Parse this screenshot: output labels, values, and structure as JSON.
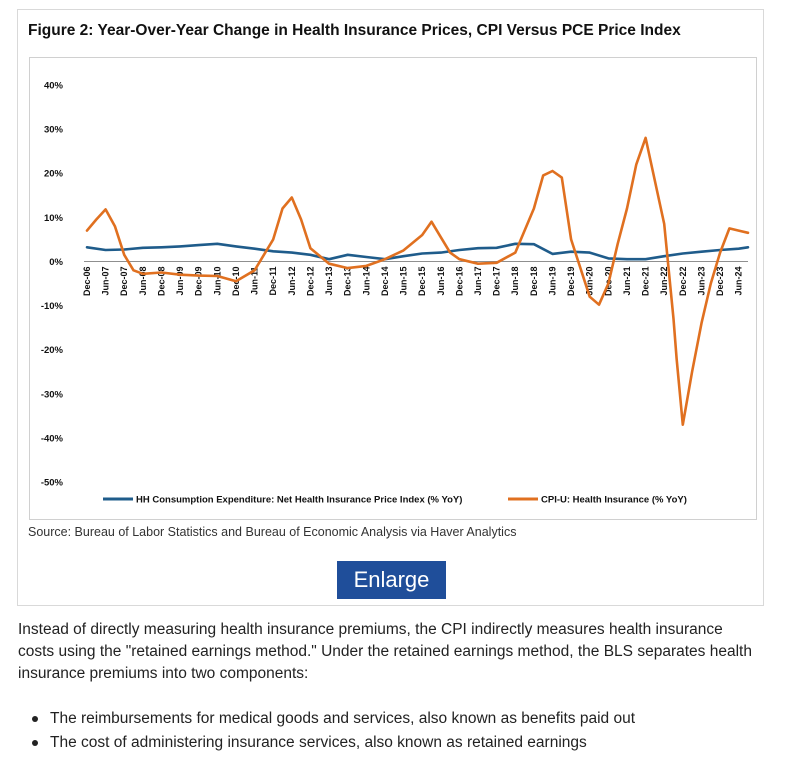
{
  "figure": {
    "title": "Figure 2: Year-Over-Year Change in Health Insurance Prices, CPI Versus PCE Price Index",
    "source": "Source: Bureau of Labor Statistics and Bureau of Economic Analysis via Haver Analytics",
    "enlarge_label": "Enlarge"
  },
  "body": {
    "paragraph": "Instead of directly measuring health insurance premiums, the CPI indirectly measures health insurance costs using the \"retained earnings method.\" Under the retained earnings method, the BLS separates health insurance premiums into two components:",
    "bullets": [
      "The reimbursements for medical goods and services, also known as benefits paid out",
      "The cost of administering insurance services, also known as retained earnings"
    ]
  },
  "colors": {
    "pce_series": "#1f5c8b",
    "cpi_series": "#e07020",
    "button": "#1f4e9a"
  },
  "chart_data": {
    "type": "line",
    "title": "Figure 2: Year-Over-Year Change in Health Insurance Prices, CPI Versus PCE Price Index",
    "xlabel": "",
    "ylabel": "",
    "ylim": [
      -50,
      40
    ],
    "y_ticks": [
      "40%",
      "30%",
      "20%",
      "10%",
      "0%",
      "-10%",
      "-20%",
      "-30%",
      "-40%",
      "-50%"
    ],
    "y_tick_values": [
      40,
      30,
      20,
      10,
      0,
      -10,
      -20,
      -30,
      -40,
      -50
    ],
    "x_ticks": [
      "Dec-06",
      "Jun-07",
      "Dec-07",
      "Jun-08",
      "Dec-08",
      "Jun-09",
      "Dec-09",
      "Jun-10",
      "Dec-10",
      "Jun-11",
      "Dec-11",
      "Jun-12",
      "Dec-12",
      "Jun-13",
      "Dec-13",
      "Jun-14",
      "Dec-14",
      "Jun-15",
      "Dec-15",
      "Jun-16",
      "Dec-16",
      "Jun-17",
      "Dec-17",
      "Jun-18",
      "Dec-18",
      "Jun-19",
      "Dec-19",
      "Jun-20",
      "Dec-20",
      "Jun-21",
      "Dec-21",
      "Jun-22",
      "Dec-22",
      "Jun-23",
      "Dec-23",
      "Jun-24"
    ],
    "x_range": [
      "Dec-06",
      "Sep-24"
    ],
    "grid": false,
    "legend_placement": "bottom",
    "series": [
      {
        "name": "HH Consumption Expenditure: Net Health Insurance Price Index (% YoY)",
        "x": [
          "Dec-06",
          "Jun-07",
          "Dec-07",
          "Jun-08",
          "Dec-08",
          "Jun-09",
          "Dec-09",
          "Jun-10",
          "Dec-10",
          "Jun-11",
          "Dec-11",
          "Jun-12",
          "Dec-12",
          "Jun-13",
          "Dec-13",
          "Jun-14",
          "Dec-14",
          "Jun-15",
          "Dec-15",
          "Jun-16",
          "Dec-16",
          "Jun-17",
          "Dec-17",
          "Jun-18",
          "Dec-18",
          "Jun-19",
          "Dec-19",
          "Jun-20",
          "Dec-20",
          "Jun-21",
          "Dec-21",
          "Jun-22",
          "Dec-22",
          "Jun-23",
          "Dec-23",
          "Jun-24",
          "Sep-24"
        ],
        "values": [
          3.2,
          2.6,
          2.7,
          3.1,
          3.2,
          3.4,
          3.7,
          4.0,
          3.4,
          2.9,
          2.3,
          2.0,
          1.5,
          0.5,
          1.5,
          1.0,
          0.5,
          1.2,
          1.8,
          2.0,
          2.6,
          3.0,
          3.1,
          4.0,
          3.9,
          1.7,
          2.2,
          2.0,
          0.7,
          0.5,
          0.5,
          1.2,
          1.8,
          2.2,
          2.6,
          2.9,
          3.2
        ]
      },
      {
        "name": "CPI-U: Health Insurance (% YoY)",
        "x": [
          "Dec-06",
          "Mar-07",
          "Jun-07",
          "Sep-07",
          "Dec-07",
          "Mar-08",
          "Jun-08",
          "Dec-08",
          "Jun-09",
          "Dec-09",
          "Jun-10",
          "Dec-10",
          "Jun-11",
          "Dec-11",
          "Mar-12",
          "Jun-12",
          "Sep-12",
          "Dec-12",
          "Jun-13",
          "Dec-13",
          "Jun-14",
          "Dec-14",
          "Jun-15",
          "Dec-15",
          "Mar-16",
          "Jun-16",
          "Sep-16",
          "Dec-16",
          "Jun-17",
          "Dec-17",
          "Jun-18",
          "Dec-18",
          "Mar-19",
          "Jun-19",
          "Sep-19",
          "Dec-19",
          "Jun-20",
          "Sep-20",
          "Dec-20",
          "Mar-21",
          "Jun-21",
          "Sep-21",
          "Dec-21",
          "Jun-22",
          "Sep-22",
          "Oct-22",
          "Dec-22",
          "Mar-23",
          "Jun-23",
          "Sep-23",
          "Dec-23",
          "Mar-24",
          "Jun-24",
          "Sep-24"
        ],
        "values": [
          7.0,
          9.5,
          11.8,
          8.0,
          1.5,
          -2.0,
          -2.8,
          -2.5,
          -3.0,
          -3.2,
          -3.3,
          -4.5,
          -2.0,
          5.0,
          12.0,
          14.5,
          9.5,
          3.0,
          -0.5,
          -1.5,
          -1.0,
          0.5,
          2.5,
          6.0,
          9.0,
          5.5,
          2.0,
          0.5,
          -0.5,
          -0.3,
          2.0,
          12.0,
          19.5,
          20.5,
          19.0,
          5.0,
          -8.0,
          -9.8,
          -5.0,
          4.0,
          12.0,
          22.0,
          28.0,
          8.5,
          -13.0,
          -22.0,
          -37.0,
          -25.0,
          -14.0,
          -5.0,
          2.0,
          7.5,
          7.0,
          6.5
        ]
      }
    ]
  }
}
